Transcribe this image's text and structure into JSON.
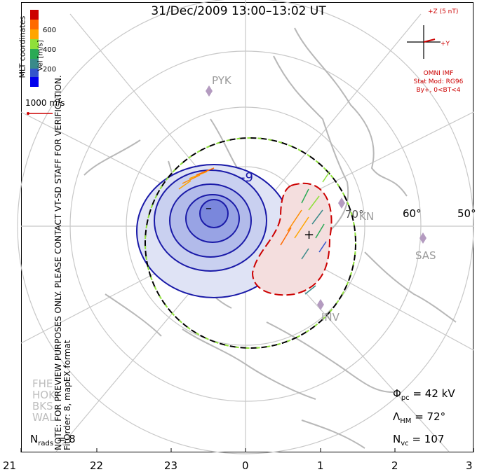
{
  "title": "31/Dec/2009 13:00–13:02 UT",
  "side_note": "NOTE: FOR PREVIEW PURPOSES ONLY. PLEASE CONTACT VT-SD STAFF FOR VERIFICATION.",
  "fit_note": "FitOrder: 8, mapEX format",
  "coordinates_note": "MLT coordinates",
  "colorbar": {
    "label": "Vel [m/s]",
    "ticks": [
      "600",
      "400",
      "200"
    ],
    "colors": [
      "#cc0000",
      "#ff6a00",
      "#ffa500",
      "#8fe03a",
      "#2aaa55",
      "#3a8a8a",
      "#3355cc",
      "#0000ee"
    ]
  },
  "scale_vector": {
    "label": "1000 m/s",
    "color": "#cc0000"
  },
  "imf": {
    "axis_z": "+Z (5 nT)",
    "axis_y": "+Y",
    "source": "OMNI IMF",
    "stat_model": "Stat Mod: RG96",
    "condition": "By+, 0<BT<4",
    "color": "#cc0000"
  },
  "stations": [
    "FHE",
    "HOK",
    "BKS",
    "WAL"
  ],
  "radars": [
    "PYK",
    "SAS",
    "INV",
    "KN"
  ],
  "latitude_labels": [
    "70°",
    "60°",
    "50°"
  ],
  "contour_labels": {
    "neg": "-9",
    "neg_center": "–",
    "pos_center": "+"
  },
  "stats": {
    "phi_pc": {
      "symbol": "Φ",
      "sub": "pc",
      "value": "= 42 kV"
    },
    "lambda_hm": {
      "symbol": "Λ",
      "sub": "HM",
      "value": "= 72°"
    },
    "n_vc": {
      "symbol": "N",
      "sub": "vc",
      "value": "= 107"
    }
  },
  "nrads": {
    "symbol": "N",
    "sub": "rads",
    "value": "= 8"
  },
  "mlt_ticks": [
    "21",
    "22",
    "23",
    "0",
    "1",
    "2",
    "3"
  ]
}
